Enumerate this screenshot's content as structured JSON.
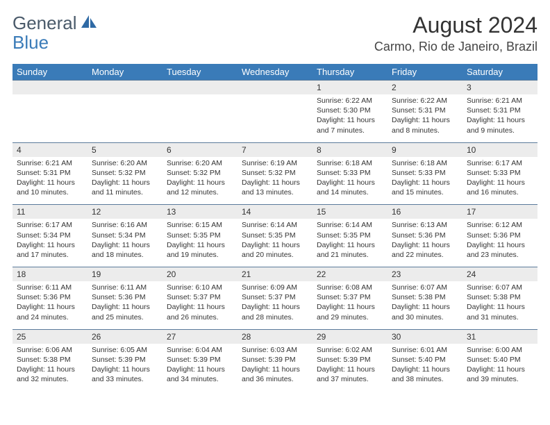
{
  "logo": {
    "part1": "General",
    "part2": "Blue"
  },
  "title": "August 2024",
  "location": "Carmo, Rio de Janeiro, Brazil",
  "colors": {
    "header_bg": "#3a7bb8",
    "header_text": "#ffffff",
    "day_num_bg": "#ececec",
    "border": "#5a7a9a",
    "logo_gray": "#4a5a6a",
    "logo_blue": "#3a7bb8"
  },
  "day_headers": [
    "Sunday",
    "Monday",
    "Tuesday",
    "Wednesday",
    "Thursday",
    "Friday",
    "Saturday"
  ],
  "weeks": [
    [
      {
        "empty": true
      },
      {
        "empty": true
      },
      {
        "empty": true
      },
      {
        "empty": true
      },
      {
        "num": "1",
        "sunrise": "Sunrise: 6:22 AM",
        "sunset": "Sunset: 5:30 PM",
        "daylight": "Daylight: 11 hours and 7 minutes."
      },
      {
        "num": "2",
        "sunrise": "Sunrise: 6:22 AM",
        "sunset": "Sunset: 5:31 PM",
        "daylight": "Daylight: 11 hours and 8 minutes."
      },
      {
        "num": "3",
        "sunrise": "Sunrise: 6:21 AM",
        "sunset": "Sunset: 5:31 PM",
        "daylight": "Daylight: 11 hours and 9 minutes."
      }
    ],
    [
      {
        "num": "4",
        "sunrise": "Sunrise: 6:21 AM",
        "sunset": "Sunset: 5:31 PM",
        "daylight": "Daylight: 11 hours and 10 minutes."
      },
      {
        "num": "5",
        "sunrise": "Sunrise: 6:20 AM",
        "sunset": "Sunset: 5:32 PM",
        "daylight": "Daylight: 11 hours and 11 minutes."
      },
      {
        "num": "6",
        "sunrise": "Sunrise: 6:20 AM",
        "sunset": "Sunset: 5:32 PM",
        "daylight": "Daylight: 11 hours and 12 minutes."
      },
      {
        "num": "7",
        "sunrise": "Sunrise: 6:19 AM",
        "sunset": "Sunset: 5:32 PM",
        "daylight": "Daylight: 11 hours and 13 minutes."
      },
      {
        "num": "8",
        "sunrise": "Sunrise: 6:18 AM",
        "sunset": "Sunset: 5:33 PM",
        "daylight": "Daylight: 11 hours and 14 minutes."
      },
      {
        "num": "9",
        "sunrise": "Sunrise: 6:18 AM",
        "sunset": "Sunset: 5:33 PM",
        "daylight": "Daylight: 11 hours and 15 minutes."
      },
      {
        "num": "10",
        "sunrise": "Sunrise: 6:17 AM",
        "sunset": "Sunset: 5:33 PM",
        "daylight": "Daylight: 11 hours and 16 minutes."
      }
    ],
    [
      {
        "num": "11",
        "sunrise": "Sunrise: 6:17 AM",
        "sunset": "Sunset: 5:34 PM",
        "daylight": "Daylight: 11 hours and 17 minutes."
      },
      {
        "num": "12",
        "sunrise": "Sunrise: 6:16 AM",
        "sunset": "Sunset: 5:34 PM",
        "daylight": "Daylight: 11 hours and 18 minutes."
      },
      {
        "num": "13",
        "sunrise": "Sunrise: 6:15 AM",
        "sunset": "Sunset: 5:35 PM",
        "daylight": "Daylight: 11 hours and 19 minutes."
      },
      {
        "num": "14",
        "sunrise": "Sunrise: 6:14 AM",
        "sunset": "Sunset: 5:35 PM",
        "daylight": "Daylight: 11 hours and 20 minutes."
      },
      {
        "num": "15",
        "sunrise": "Sunrise: 6:14 AM",
        "sunset": "Sunset: 5:35 PM",
        "daylight": "Daylight: 11 hours and 21 minutes."
      },
      {
        "num": "16",
        "sunrise": "Sunrise: 6:13 AM",
        "sunset": "Sunset: 5:36 PM",
        "daylight": "Daylight: 11 hours and 22 minutes."
      },
      {
        "num": "17",
        "sunrise": "Sunrise: 6:12 AM",
        "sunset": "Sunset: 5:36 PM",
        "daylight": "Daylight: 11 hours and 23 minutes."
      }
    ],
    [
      {
        "num": "18",
        "sunrise": "Sunrise: 6:11 AM",
        "sunset": "Sunset: 5:36 PM",
        "daylight": "Daylight: 11 hours and 24 minutes."
      },
      {
        "num": "19",
        "sunrise": "Sunrise: 6:11 AM",
        "sunset": "Sunset: 5:36 PM",
        "daylight": "Daylight: 11 hours and 25 minutes."
      },
      {
        "num": "20",
        "sunrise": "Sunrise: 6:10 AM",
        "sunset": "Sunset: 5:37 PM",
        "daylight": "Daylight: 11 hours and 26 minutes."
      },
      {
        "num": "21",
        "sunrise": "Sunrise: 6:09 AM",
        "sunset": "Sunset: 5:37 PM",
        "daylight": "Daylight: 11 hours and 28 minutes."
      },
      {
        "num": "22",
        "sunrise": "Sunrise: 6:08 AM",
        "sunset": "Sunset: 5:37 PM",
        "daylight": "Daylight: 11 hours and 29 minutes."
      },
      {
        "num": "23",
        "sunrise": "Sunrise: 6:07 AM",
        "sunset": "Sunset: 5:38 PM",
        "daylight": "Daylight: 11 hours and 30 minutes."
      },
      {
        "num": "24",
        "sunrise": "Sunrise: 6:07 AM",
        "sunset": "Sunset: 5:38 PM",
        "daylight": "Daylight: 11 hours and 31 minutes."
      }
    ],
    [
      {
        "num": "25",
        "sunrise": "Sunrise: 6:06 AM",
        "sunset": "Sunset: 5:38 PM",
        "daylight": "Daylight: 11 hours and 32 minutes."
      },
      {
        "num": "26",
        "sunrise": "Sunrise: 6:05 AM",
        "sunset": "Sunset: 5:39 PM",
        "daylight": "Daylight: 11 hours and 33 minutes."
      },
      {
        "num": "27",
        "sunrise": "Sunrise: 6:04 AM",
        "sunset": "Sunset: 5:39 PM",
        "daylight": "Daylight: 11 hours and 34 minutes."
      },
      {
        "num": "28",
        "sunrise": "Sunrise: 6:03 AM",
        "sunset": "Sunset: 5:39 PM",
        "daylight": "Daylight: 11 hours and 36 minutes."
      },
      {
        "num": "29",
        "sunrise": "Sunrise: 6:02 AM",
        "sunset": "Sunset: 5:39 PM",
        "daylight": "Daylight: 11 hours and 37 minutes."
      },
      {
        "num": "30",
        "sunrise": "Sunrise: 6:01 AM",
        "sunset": "Sunset: 5:40 PM",
        "daylight": "Daylight: 11 hours and 38 minutes."
      },
      {
        "num": "31",
        "sunrise": "Sunrise: 6:00 AM",
        "sunset": "Sunset: 5:40 PM",
        "daylight": "Daylight: 11 hours and 39 minutes."
      }
    ]
  ]
}
